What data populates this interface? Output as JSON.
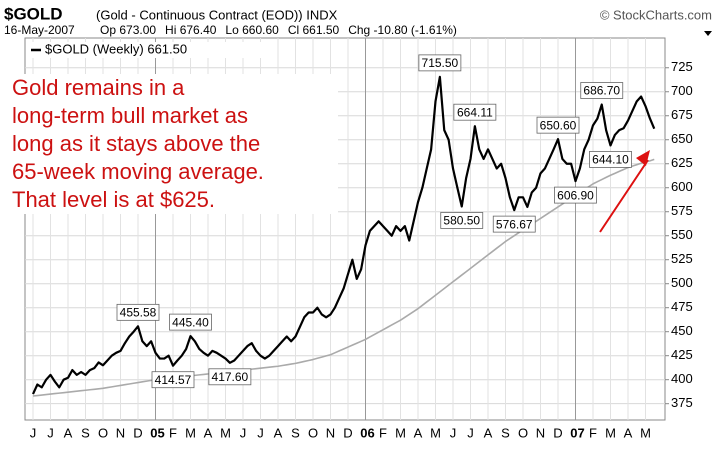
{
  "chart_data": {
    "type": "line",
    "symbol": "$GOLD",
    "subtitle": "(Gold - Continuous Contract (EOD)) INDX",
    "source": "© StockCharts.com",
    "date": "16-May-2007",
    "quote": [
      "Op 673.00",
      "Hi 676.40",
      "Lo 660.60",
      "Cl 661.50",
      "Chg -10.80 (-1.61%)"
    ],
    "annotation": [
      "Gold remains in a",
      "long-term bull market as",
      "long as it stays above the",
      "65-week moving average.",
      "That level is at $625."
    ],
    "categories": [
      "J",
      null,
      null,
      null,
      "J",
      null,
      null,
      null,
      "A",
      null,
      null,
      null,
      "S",
      null,
      null,
      null,
      "O",
      null,
      null,
      null,
      "N",
      null,
      null,
      null,
      "D",
      null,
      null,
      null,
      "05",
      null,
      null,
      null,
      "F",
      null,
      null,
      null,
      "M",
      null,
      null,
      null,
      "A",
      null,
      null,
      null,
      "M",
      null,
      null,
      null,
      "J",
      null,
      null,
      null,
      "J",
      null,
      null,
      null,
      "A",
      null,
      null,
      null,
      "S",
      null,
      null,
      null,
      "O",
      null,
      null,
      null,
      "N",
      null,
      null,
      null,
      "D",
      null,
      null,
      null,
      "06",
      null,
      null,
      null,
      "F",
      null,
      null,
      null,
      "M",
      null,
      null,
      null,
      "A",
      null,
      null,
      null,
      "M",
      null,
      null,
      null,
      "J",
      null,
      null,
      null,
      "J",
      null,
      null,
      null,
      "A",
      null,
      null,
      null,
      "S",
      null,
      null,
      null,
      "O",
      null,
      null,
      null,
      "N",
      null,
      null,
      null,
      "D",
      null,
      null,
      null,
      "07",
      null,
      null,
      null,
      "F",
      null,
      null,
      null,
      "M",
      null,
      null,
      null,
      "A",
      null,
      null,
      null,
      "M",
      null,
      null
    ],
    "series": [
      {
        "name": "$GOLD (Weekly) 661.50",
        "color": "#000000",
        "width": 2.2,
        "values": [
          385,
          395,
          392,
          400,
          405,
          398,
          392,
          400,
          402,
          410,
          405,
          408,
          405,
          410,
          412,
          418,
          415,
          420,
          425,
          428,
          430,
          438,
          445,
          450,
          455.58,
          440,
          435,
          440,
          428,
          422,
          422,
          425,
          414.57,
          420,
          425,
          432,
          445.4,
          440,
          432,
          428,
          425,
          430,
          428,
          425,
          422,
          417.6,
          420,
          425,
          430,
          435,
          438,
          430,
          425,
          422,
          425,
          430,
          435,
          440,
          445,
          440,
          445,
          455,
          465,
          470,
          470,
          475,
          468,
          465,
          468,
          475,
          485,
          495,
          510,
          525,
          505,
          515,
          540,
          555,
          560,
          565,
          560,
          555,
          550,
          560,
          555,
          560,
          545,
          565,
          585,
          600,
          620,
          640,
          690,
          715.5,
          660,
          650,
          620,
          600,
          580.5,
          610,
          630,
          664.11,
          640,
          630,
          640,
          630,
          620,
          625,
          610,
          590,
          576.67,
          590,
          590,
          580,
          595,
          600,
          615,
          620,
          630,
          640,
          650.6,
          630,
          625,
          625,
          606.9,
          620,
          640,
          650,
          665,
          672,
          686.7,
          660,
          644.1,
          655,
          660,
          662,
          670,
          680,
          690,
          695,
          685,
          672.3,
          661.5
        ],
        "value_labels": [
          null,
          null,
          null,
          null,
          null,
          null,
          null,
          null,
          null,
          null,
          null,
          null,
          null,
          null,
          null,
          null,
          null,
          null,
          null,
          null,
          null,
          null,
          null,
          null,
          "455.58",
          null,
          null,
          null,
          null,
          null,
          null,
          null,
          "414.57",
          null,
          null,
          null,
          "445.40",
          null,
          null,
          null,
          null,
          null,
          null,
          null,
          null,
          "417.60",
          null,
          null,
          null,
          null,
          null,
          null,
          null,
          null,
          null,
          null,
          null,
          null,
          null,
          null,
          null,
          null,
          null,
          null,
          null,
          null,
          null,
          null,
          null,
          null,
          null,
          null,
          null,
          null,
          null,
          null,
          null,
          null,
          null,
          null,
          null,
          null,
          null,
          null,
          null,
          null,
          null,
          null,
          null,
          null,
          null,
          null,
          null,
          "715.50",
          null,
          null,
          null,
          null,
          "580.50",
          null,
          null,
          "664.11",
          null,
          null,
          null,
          null,
          null,
          null,
          null,
          null,
          "576.67",
          null,
          null,
          null,
          null,
          null,
          null,
          null,
          null,
          null,
          "650.60",
          null,
          null,
          null,
          "606.90",
          null,
          null,
          null,
          null,
          null,
          "686.70",
          null,
          "644.10",
          null,
          null,
          null,
          null,
          null,
          null,
          null,
          null,
          null,
          null
        ]
      },
      {
        "color": "#aaaaaa",
        "width": 1.6,
        "values": [
          383,
          383.5,
          384,
          384.5,
          385,
          385.5,
          386,
          386.5,
          387,
          387.5,
          388,
          388.5,
          389,
          389.5,
          390,
          390.5,
          391,
          391.8,
          392.5,
          393.3,
          394,
          394.8,
          395.5,
          396.3,
          397,
          397.8,
          398.5,
          399.3,
          400,
          400.5,
          401,
          401.5,
          402,
          402.5,
          403,
          403.5,
          404,
          404.5,
          405,
          405.5,
          406,
          406.5,
          407,
          407.5,
          408,
          408.5,
          409,
          409.5,
          410,
          410.5,
          411,
          411.5,
          412,
          412.5,
          413,
          413.5,
          414,
          414.8,
          415.5,
          416.3,
          417,
          418,
          419,
          420,
          421,
          422.3,
          423.5,
          424.8,
          426,
          428,
          430,
          432,
          434,
          436,
          438,
          440,
          442,
          444.5,
          447,
          449.5,
          452,
          454.5,
          457,
          459.5,
          462,
          465,
          468,
          471,
          474,
          477.5,
          481,
          484.5,
          488,
          491.5,
          495,
          498.5,
          502,
          505.5,
          509,
          512.5,
          516,
          519.5,
          523,
          526.5,
          530,
          533.5,
          537,
          540.5,
          544,
          547,
          550,
          553,
          556,
          559,
          562,
          565,
          568,
          571,
          574,
          577,
          580,
          583,
          586,
          589,
          592,
          595,
          598,
          601,
          604,
          606.3,
          608.5,
          610.8,
          613,
          615,
          617,
          619,
          621,
          622.5,
          624,
          625.5,
          627,
          628,
          629.5
        ]
      }
    ],
    "ylim": [
      358,
      756
    ],
    "yticks": [
      375,
      400,
      425,
      450,
      475,
      500,
      525,
      550,
      575,
      600,
      625,
      650,
      675,
      700,
      725
    ],
    "grid": true
  }
}
